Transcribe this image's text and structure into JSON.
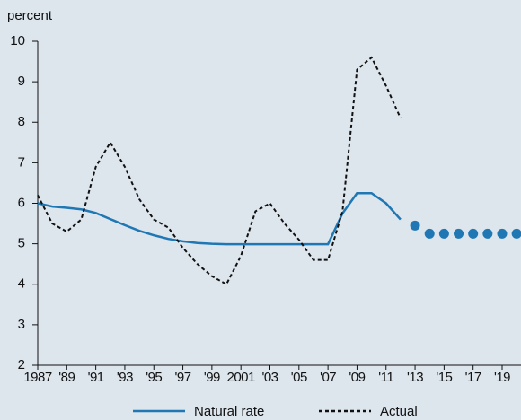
{
  "chart_data": {
    "type": "line",
    "y_label": "percent",
    "xlim": [
      1987,
      2020.3
    ],
    "ylim": [
      2,
      10
    ],
    "yticks": [
      2,
      3,
      4,
      5,
      6,
      7,
      8,
      9,
      10
    ],
    "xticks": [
      1987,
      {
        "value": 1989,
        "label": "'89"
      },
      {
        "value": 1991,
        "label": "'91"
      },
      {
        "value": 1993,
        "label": "'93"
      },
      {
        "value": 1995,
        "label": "'95"
      },
      {
        "value": 1997,
        "label": "'97"
      },
      {
        "value": 1999,
        "label": "'99"
      },
      2001,
      {
        "value": 2003,
        "label": "'03"
      },
      {
        "value": 2005,
        "label": "'05"
      },
      {
        "value": 2007,
        "label": "'07"
      },
      {
        "value": 2009,
        "label": "'09"
      },
      {
        "value": 2011,
        "label": "'11"
      },
      {
        "value": 2013,
        "label": "'13"
      },
      {
        "value": 2015,
        "label": "'15"
      },
      {
        "value": 2017,
        "label": "'17"
      },
      {
        "value": 2019,
        "label": "'19"
      }
    ],
    "series": [
      {
        "name": "Natural rate",
        "color": "#1f77b4",
        "style": "solid",
        "x": [
          1987,
          1988,
          1989,
          1990,
          1991,
          1992,
          1993,
          1994,
          1995,
          1996,
          1997,
          1998,
          1999,
          2000,
          2001,
          2002,
          2003,
          2004,
          2005,
          2006,
          2007,
          2008,
          2009,
          2010,
          2011,
          2012
        ],
        "values": [
          6.0,
          5.92,
          5.89,
          5.85,
          5.76,
          5.61,
          5.46,
          5.32,
          5.21,
          5.12,
          5.06,
          5.02,
          5.0,
          4.99,
          4.99,
          4.99,
          4.99,
          4.99,
          4.99,
          4.99,
          4.99,
          5.75,
          6.25,
          6.25,
          6.0,
          5.6
        ]
      },
      {
        "name": "Actual",
        "color": "#111111",
        "style": "dashed",
        "x": [
          1987,
          1988,
          1989,
          1990,
          1991,
          1992,
          1993,
          1994,
          1995,
          1996,
          1997,
          1998,
          1999,
          2000,
          2001,
          2002,
          2003,
          2004,
          2005,
          2006,
          2007,
          2008,
          2009,
          2010,
          2011,
          2012
        ],
        "values": [
          6.2,
          5.5,
          5.3,
          5.6,
          6.9,
          7.5,
          6.9,
          6.1,
          5.6,
          5.4,
          4.9,
          4.5,
          4.2,
          4.0,
          4.7,
          5.8,
          6.0,
          5.5,
          5.1,
          4.6,
          4.6,
          5.8,
          9.3,
          9.6,
          8.9,
          8.1
        ]
      },
      {
        "color": "#1f77b4",
        "style": "dots",
        "x": [
          2013,
          2014,
          2015,
          2016,
          2017,
          2018,
          2019,
          2020
        ],
        "values": [
          5.45,
          5.25,
          5.25,
          5.25,
          5.25,
          5.25,
          5.25,
          5.25
        ]
      }
    ]
  }
}
